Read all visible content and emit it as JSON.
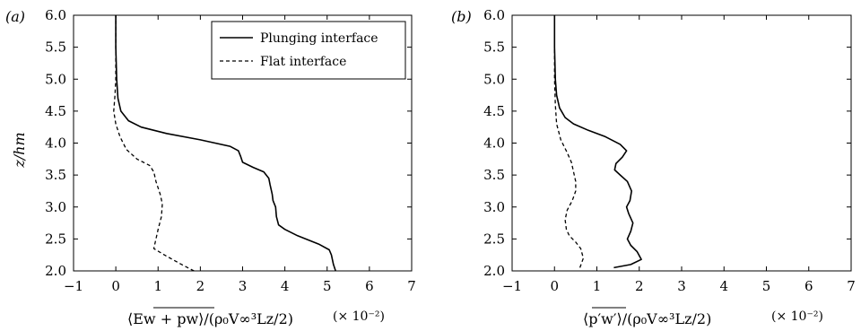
{
  "chart_data": [
    {
      "type": "line",
      "panel_label": "(a)",
      "xlabel": "⟨Ew + pw⟩/(ρ₀V∞³Lz/2)",
      "xlabel_overline": "Ew + pw",
      "x_scale_label": "(× 10⁻²)",
      "ylabel": "z/hm",
      "xlim": [
        -1,
        7
      ],
      "ylim": [
        2.0,
        6.0
      ],
      "x_ticks": [
        "−1",
        "0",
        "1",
        "2",
        "3",
        "4",
        "5",
        "6",
        "7"
      ],
      "y_ticks": [
        "2.0",
        "2.5",
        "3.0",
        "3.5",
        "4.0",
        "4.5",
        "5.0",
        "5.5",
        "6.0"
      ],
      "legend_position": "top-right",
      "legend": [
        "Plunging interface",
        "Flat interface"
      ],
      "series": [
        {
          "name": "Plunging interface",
          "style": "solid",
          "points": [
            [
              5.2,
              2.0
            ],
            [
              5.15,
              2.1
            ],
            [
              5.1,
              2.25
            ],
            [
              5.05,
              2.33
            ],
            [
              4.8,
              2.42
            ],
            [
              4.3,
              2.55
            ],
            [
              4.0,
              2.65
            ],
            [
              3.85,
              2.72
            ],
            [
              3.8,
              2.85
            ],
            [
              3.78,
              3.0
            ],
            [
              3.72,
              3.1
            ],
            [
              3.7,
              3.2
            ],
            [
              3.65,
              3.35
            ],
            [
              3.62,
              3.45
            ],
            [
              3.5,
              3.55
            ],
            [
              3.25,
              3.62
            ],
            [
              3.0,
              3.7
            ],
            [
              2.95,
              3.8
            ],
            [
              2.9,
              3.88
            ],
            [
              2.7,
              3.95
            ],
            [
              2.0,
              4.05
            ],
            [
              1.2,
              4.15
            ],
            [
              0.6,
              4.25
            ],
            [
              0.3,
              4.35
            ],
            [
              0.12,
              4.5
            ],
            [
              0.05,
              4.7
            ],
            [
              0.02,
              5.0
            ],
            [
              0.0,
              5.5
            ],
            [
              0.0,
              6.0
            ]
          ]
        },
        {
          "name": "Flat interface",
          "style": "dashed",
          "points": [
            [
              1.85,
              2.0
            ],
            [
              1.5,
              2.12
            ],
            [
              1.15,
              2.25
            ],
            [
              0.9,
              2.35
            ],
            [
              0.95,
              2.5
            ],
            [
              1.0,
              2.65
            ],
            [
              1.08,
              2.85
            ],
            [
              1.1,
              3.05
            ],
            [
              1.05,
              3.2
            ],
            [
              0.95,
              3.4
            ],
            [
              0.9,
              3.55
            ],
            [
              0.8,
              3.65
            ],
            [
              0.5,
              3.75
            ],
            [
              0.25,
              3.9
            ],
            [
              0.1,
              4.1
            ],
            [
              0.0,
              4.3
            ],
            [
              -0.05,
              4.5
            ],
            [
              -0.02,
              4.75
            ],
            [
              0.0,
              5.0
            ],
            [
              0.0,
              5.5
            ],
            [
              0.0,
              6.0
            ]
          ]
        }
      ]
    },
    {
      "type": "line",
      "panel_label": "(b)",
      "xlabel": "⟨p′w′⟩/(ρ₀V∞³Lz/2)",
      "xlabel_overline": "p′w′",
      "x_scale_label": "(× 10⁻²)",
      "ylabel": "",
      "xlim": [
        -1,
        7
      ],
      "ylim": [
        2.0,
        6.0
      ],
      "x_ticks": [
        "−1",
        "0",
        "1",
        "2",
        "3",
        "4",
        "5",
        "6",
        "7"
      ],
      "y_ticks": [
        "2.0",
        "2.5",
        "3.0",
        "3.5",
        "4.0",
        "4.5",
        "5.0",
        "5.5",
        "6.0"
      ],
      "series": [
        {
          "name": "Plunging interface",
          "style": "solid",
          "points": [
            [
              1.4,
              2.05
            ],
            [
              1.8,
              2.1
            ],
            [
              2.05,
              2.18
            ],
            [
              1.95,
              2.3
            ],
            [
              1.8,
              2.4
            ],
            [
              1.72,
              2.5
            ],
            [
              1.8,
              2.62
            ],
            [
              1.85,
              2.75
            ],
            [
              1.75,
              2.9
            ],
            [
              1.7,
              3.0
            ],
            [
              1.78,
              3.1
            ],
            [
              1.82,
              3.25
            ],
            [
              1.72,
              3.4
            ],
            [
              1.55,
              3.5
            ],
            [
              1.42,
              3.58
            ],
            [
              1.45,
              3.68
            ],
            [
              1.6,
              3.78
            ],
            [
              1.7,
              3.88
            ],
            [
              1.55,
              3.98
            ],
            [
              1.2,
              4.1
            ],
            [
              0.8,
              4.2
            ],
            [
              0.45,
              4.3
            ],
            [
              0.25,
              4.4
            ],
            [
              0.12,
              4.55
            ],
            [
              0.05,
              4.75
            ],
            [
              0.02,
              5.0
            ],
            [
              0.0,
              5.5
            ],
            [
              0.0,
              6.0
            ]
          ]
        },
        {
          "name": "Flat interface",
          "style": "dashed",
          "points": [
            [
              0.6,
              2.05
            ],
            [
              0.68,
              2.2
            ],
            [
              0.62,
              2.35
            ],
            [
              0.5,
              2.45
            ],
            [
              0.35,
              2.55
            ],
            [
              0.28,
              2.65
            ],
            [
              0.25,
              2.8
            ],
            [
              0.3,
              2.95
            ],
            [
              0.42,
              3.1
            ],
            [
              0.5,
              3.25
            ],
            [
              0.5,
              3.4
            ],
            [
              0.45,
              3.55
            ],
            [
              0.4,
              3.7
            ],
            [
              0.3,
              3.85
            ],
            [
              0.15,
              4.05
            ],
            [
              0.05,
              4.3
            ],
            [
              0.02,
              4.6
            ],
            [
              0.0,
              5.0
            ],
            [
              0.0,
              5.5
            ],
            [
              0.0,
              6.0
            ]
          ]
        }
      ]
    }
  ]
}
